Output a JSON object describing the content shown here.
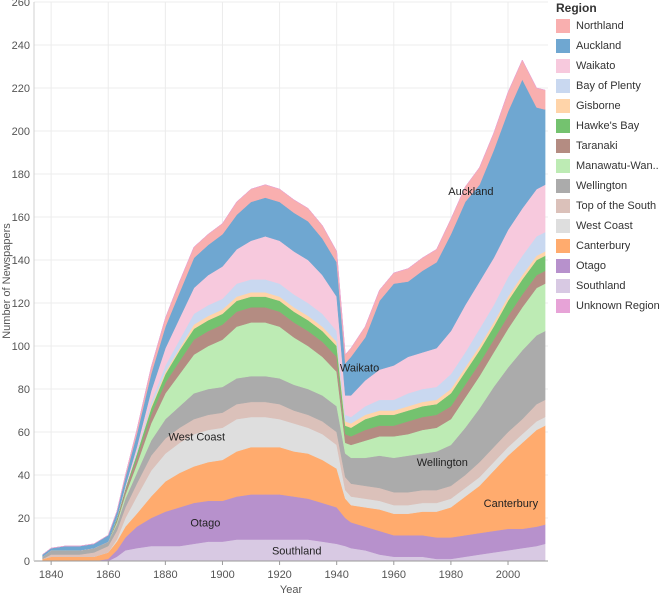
{
  "chart_data": {
    "type": "area",
    "stacked": true,
    "xlabel": "Year",
    "ylabel": "Number of Newspapers",
    "xlim": [
      1834,
      2014
    ],
    "ylim": [
      0,
      260
    ],
    "x_ticks": [
      "1840",
      "1860",
      "1880",
      "1900",
      "1920",
      "1940",
      "1960",
      "1980",
      "2000"
    ],
    "y_ticks": [
      "0",
      "20",
      "40",
      "60",
      "80",
      "100",
      "120",
      "140",
      "160",
      "180",
      "200",
      "220",
      "240",
      "260"
    ],
    "legend_title": "Region",
    "x": [
      1837,
      1840,
      1845,
      1850,
      1855,
      1860,
      1863,
      1866,
      1870,
      1875,
      1880,
      1885,
      1890,
      1895,
      1900,
      1905,
      1910,
      1915,
      1920,
      1925,
      1930,
      1935,
      1940,
      1943,
      1945,
      1950,
      1955,
      1960,
      1965,
      1970,
      1975,
      1980,
      1985,
      1990,
      1995,
      2000,
      2005,
      2010,
      2013
    ],
    "series": [
      {
        "name": "Southland",
        "color": "#D8C9E3",
        "values": [
          0,
          0,
          0,
          0,
          0,
          0,
          2,
          5,
          6,
          7,
          7,
          7,
          8,
          9,
          9,
          10,
          10,
          10,
          10,
          10,
          10,
          9,
          8,
          7,
          6,
          5,
          3,
          2,
          2,
          2,
          1,
          1,
          2,
          3,
          4,
          5,
          6,
          7,
          8
        ]
      },
      {
        "name": "Otago",
        "color": "#B791CC",
        "values": [
          0,
          0,
          0,
          0,
          0,
          1,
          3,
          6,
          10,
          13,
          16,
          18,
          19,
          19,
          19,
          20,
          21,
          21,
          21,
          20,
          19,
          18,
          17,
          13,
          12,
          11,
          11,
          10,
          10,
          10,
          10,
          10,
          10,
          10,
          10,
          10,
          9,
          9,
          9
        ]
      },
      {
        "name": "Canterbury",
        "color": "#FFAB6E",
        "values": [
          1,
          2,
          2,
          2,
          2,
          3,
          4,
          5,
          6,
          10,
          14,
          16,
          17,
          18,
          19,
          21,
          22,
          22,
          22,
          21,
          21,
          20,
          18,
          9,
          8,
          9,
          10,
          10,
          10,
          11,
          12,
          14,
          18,
          22,
          28,
          34,
          40,
          45,
          46
        ]
      },
      {
        "name": "West Coast",
        "color": "#DEDEDE",
        "values": [
          0,
          0,
          0,
          0,
          0,
          0,
          1,
          4,
          8,
          12,
          13,
          14,
          15,
          15,
          15,
          15,
          14,
          14,
          13,
          13,
          12,
          12,
          11,
          4,
          4,
          4,
          4,
          4,
          4,
          4,
          4,
          4,
          4,
          4,
          4,
          4,
          4,
          4,
          4
        ]
      },
      {
        "name": "Top of the South",
        "color": "#DBC1BA",
        "values": [
          0,
          1,
          1,
          1,
          2,
          3,
          4,
          5,
          6,
          7,
          7,
          7,
          7,
          7,
          7,
          7,
          7,
          7,
          7,
          6,
          6,
          6,
          6,
          6,
          6,
          6,
          6,
          6,
          6,
          6,
          6,
          6,
          6,
          7,
          7,
          7,
          7,
          8,
          8
        ]
      },
      {
        "name": "Wellington",
        "color": "#ABABAB",
        "values": [
          1,
          2,
          2,
          2,
          2,
          2,
          3,
          4,
          5,
          7,
          9,
          10,
          12,
          12,
          12,
          12,
          12,
          12,
          12,
          12,
          12,
          12,
          12,
          11,
          12,
          13,
          15,
          16,
          17,
          17,
          18,
          19,
          22,
          25,
          28,
          30,
          32,
          32,
          32
        ]
      },
      {
        "name": "Manawatu-Wanganui",
        "color": "#BDEBB4",
        "values": [
          0,
          0,
          0,
          0,
          0,
          0,
          1,
          2,
          4,
          8,
          12,
          15,
          18,
          20,
          22,
          24,
          25,
          25,
          24,
          22,
          20,
          18,
          16,
          5,
          6,
          8,
          9,
          10,
          10,
          11,
          11,
          12,
          14,
          15,
          16,
          18,
          20,
          22,
          22
        ]
      },
      {
        "name": "Taranaki",
        "color": "#B48C82",
        "values": [
          0,
          0,
          0,
          0,
          0,
          0,
          1,
          2,
          3,
          4,
          5,
          6,
          7,
          7,
          7,
          7,
          7,
          7,
          7,
          7,
          7,
          7,
          7,
          4,
          4,
          5,
          5,
          5,
          6,
          6,
          6,
          6,
          6,
          6,
          6,
          6,
          6,
          6,
          6
        ]
      },
      {
        "name": "Hawke's Bay",
        "color": "#74C26F",
        "values": [
          0,
          0,
          0,
          0,
          0,
          0,
          1,
          1,
          2,
          3,
          4,
          5,
          5,
          5,
          5,
          5,
          5,
          5,
          5,
          5,
          5,
          5,
          5,
          4,
          4,
          5,
          5,
          5,
          5,
          5,
          5,
          6,
          6,
          6,
          6,
          7,
          7,
          7,
          7
        ]
      },
      {
        "name": "Gisborne",
        "color": "#FFD4A9",
        "values": [
          0,
          0,
          0,
          0,
          0,
          0,
          0,
          0,
          0,
          1,
          1,
          1,
          2,
          2,
          2,
          2,
          2,
          2,
          2,
          2,
          2,
          2,
          2,
          2,
          2,
          2,
          2,
          2,
          2,
          2,
          2,
          2,
          2,
          2,
          2,
          2,
          2,
          2,
          2
        ]
      },
      {
        "name": "Bay of Plenty",
        "color": "#C9D8F0",
        "values": [
          0,
          0,
          0,
          0,
          0,
          0,
          0,
          0,
          1,
          2,
          3,
          4,
          5,
          5,
          5,
          6,
          6,
          6,
          6,
          6,
          6,
          6,
          5,
          3,
          3,
          4,
          5,
          5,
          6,
          6,
          6,
          7,
          7,
          8,
          8,
          9,
          9,
          9,
          9
        ]
      },
      {
        "name": "Waikato",
        "color": "#F7C9DD",
        "values": [
          0,
          0,
          0,
          0,
          0,
          0,
          0,
          1,
          2,
          5,
          8,
          10,
          12,
          14,
          15,
          16,
          18,
          20,
          20,
          20,
          20,
          18,
          16,
          9,
          10,
          12,
          14,
          16,
          17,
          17,
          18,
          20,
          22,
          22,
          22,
          22,
          22,
          22,
          22
        ]
      },
      {
        "name": "Auckland",
        "color": "#6FA7D1",
        "values": [
          1,
          1,
          2,
          2,
          2,
          3,
          3,
          4,
          6,
          8,
          10,
          12,
          14,
          14,
          15,
          16,
          18,
          18,
          18,
          18,
          18,
          17,
          16,
          15,
          18,
          20,
          32,
          38,
          35,
          38,
          40,
          45,
          48,
          45,
          50,
          55,
          60,
          38,
          35
        ]
      },
      {
        "name": "Northland",
        "color": "#F9AFAF",
        "values": [
          0,
          0,
          0,
          0,
          0,
          0,
          0,
          1,
          2,
          3,
          4,
          5,
          5,
          5,
          5,
          6,
          6,
          6,
          6,
          6,
          6,
          6,
          5,
          4,
          4,
          5,
          5,
          5,
          6,
          6,
          6,
          7,
          7,
          8,
          8,
          9,
          9,
          9,
          9
        ]
      },
      {
        "name": "Unknown Region",
        "color": "#E7A3D7",
        "values": [
          0,
          0,
          0,
          0,
          0,
          0,
          0,
          0,
          0,
          0,
          0,
          0,
          0,
          0,
          0,
          0,
          0,
          0,
          0,
          0,
          0,
          0,
          0,
          0,
          0,
          0,
          0,
          0,
          0,
          0,
          0,
          0,
          0,
          0,
          0,
          0,
          0,
          0,
          0
        ]
      }
    ],
    "legend": [
      {
        "label": "Northland",
        "color": "#F9AFAF"
      },
      {
        "label": "Auckland",
        "color": "#6FA7D1"
      },
      {
        "label": "Waikato",
        "color": "#F7C9DD"
      },
      {
        "label": "Bay of Plenty",
        "color": "#C9D8F0"
      },
      {
        "label": "Gisborne",
        "color": "#FFD4A9"
      },
      {
        "label": "Hawke's Bay",
        "color": "#74C26F"
      },
      {
        "label": "Taranaki",
        "color": "#B48C82"
      },
      {
        "label": "Manawatu-Wan..",
        "color": "#BDEBB4"
      },
      {
        "label": "Wellington",
        "color": "#ABABAB"
      },
      {
        "label": "Top of the South",
        "color": "#DBC1BA"
      },
      {
        "label": "West Coast",
        "color": "#DEDEDE"
      },
      {
        "label": "Canterbury",
        "color": "#FFAB6E"
      },
      {
        "label": "Otago",
        "color": "#B791CC"
      },
      {
        "label": "Southland",
        "color": "#D8C9E3"
      },
      {
        "label": "Unknown Region",
        "color": "#E7A3D7"
      }
    ],
    "annotations": [
      {
        "text": "Auckland",
        "x": 1987,
        "y": 172
      },
      {
        "text": "Waikato",
        "x": 1948,
        "y": 90
      },
      {
        "text": "West Coast",
        "x": 1891,
        "y": 58
      },
      {
        "text": "Wellington",
        "x": 1977,
        "y": 46
      },
      {
        "text": "Canterbury",
        "x": 2001,
        "y": 27
      },
      {
        "text": "Otago",
        "x": 1894,
        "y": 18
      },
      {
        "text": "Southland",
        "x": 1926,
        "y": 5
      }
    ]
  }
}
